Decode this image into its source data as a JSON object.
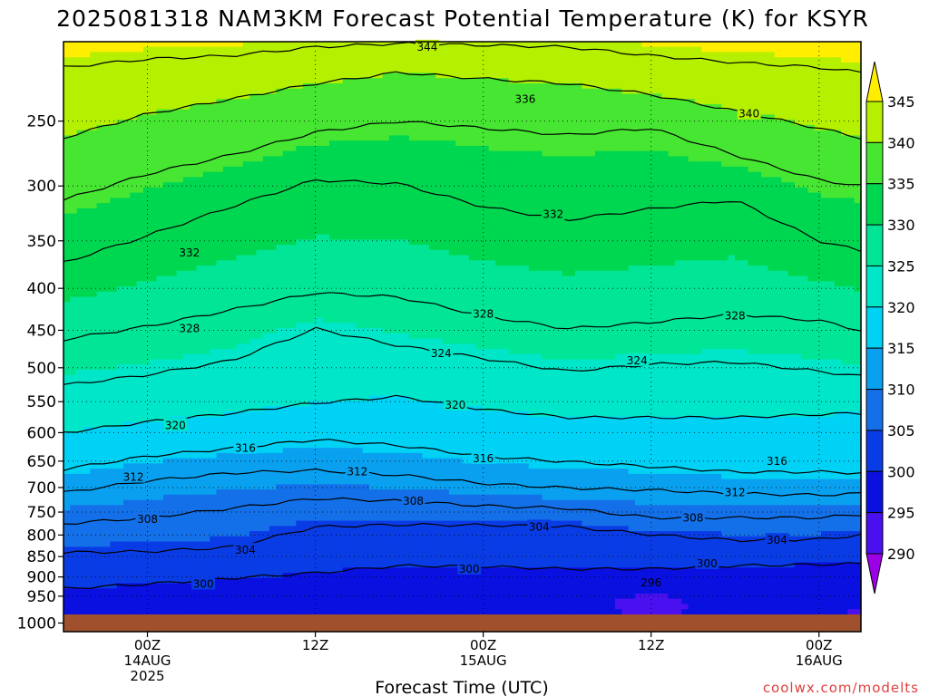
{
  "chart_data": {
    "type": "contour",
    "title": "2025081318 NAM3KM Forecast Potential Temperature (K) for KSYR",
    "xlabel": "Forecast Time (UTC)",
    "ylabel": "",
    "credit": "coolwx.com/modelts",
    "y_scale": "log",
    "y_inverted": true,
    "ylim": [
      1000,
      200
    ],
    "y_ticks": [
      250,
      300,
      350,
      400,
      450,
      500,
      550,
      600,
      650,
      700,
      750,
      800,
      850,
      900,
      950,
      1000
    ],
    "y_tick_labels": [
      "250",
      "300",
      "350",
      "400",
      "450",
      "500",
      "550",
      "600",
      "650",
      "700",
      "750",
      "800",
      "850",
      "900",
      "950",
      "1000"
    ],
    "xlim": [
      "2025-08-13T18Z",
      "2025-08-16T03Z"
    ],
    "x_ticks": [
      {
        "time": "2025-08-14T00Z",
        "line1": "00Z",
        "line2": "14AUG",
        "line3": "2025"
      },
      {
        "time": "2025-08-14T12Z",
        "line1": "12Z",
        "line2": "",
        "line3": ""
      },
      {
        "time": "2025-08-15T00Z",
        "line1": "00Z",
        "line2": "15AUG",
        "line3": ""
      },
      {
        "time": "2025-08-15T12Z",
        "line1": "12Z",
        "line2": "",
        "line3": ""
      },
      {
        "time": "2025-08-16T00Z",
        "line1": "00Z",
        "line2": "16AUG",
        "line3": ""
      }
    ],
    "grid": true,
    "colorbar": {
      "placement": "right",
      "ticks": [
        "290",
        "295",
        "300",
        "305",
        "310",
        "315",
        "320",
        "325",
        "330",
        "335",
        "340",
        "345"
      ],
      "bins": [
        {
          "from": 285,
          "to": 290,
          "color": "#9b00e6"
        },
        {
          "from": 290,
          "to": 295,
          "color": "#4a10f0"
        },
        {
          "from": 295,
          "to": 300,
          "color": "#0a10e0"
        },
        {
          "from": 300,
          "to": 305,
          "color": "#0a3ce6"
        },
        {
          "from": 305,
          "to": 310,
          "color": "#1470e8"
        },
        {
          "from": 310,
          "to": 315,
          "color": "#0aa0f0"
        },
        {
          "from": 315,
          "to": 320,
          "color": "#00d2f5"
        },
        {
          "from": 320,
          "to": 325,
          "color": "#00e6c8"
        },
        {
          "from": 325,
          "to": 330,
          "color": "#00e696"
        },
        {
          "from": 330,
          "to": 335,
          "color": "#00d750"
        },
        {
          "from": 335,
          "to": 340,
          "color": "#46e632"
        },
        {
          "from": 340,
          "to": 345,
          "color": "#b4f000"
        },
        {
          "from": 345,
          "to": 350,
          "color": "#ffee00"
        }
      ]
    },
    "ground_color": "#a0502d",
    "times": [
      "2025-08-13T18Z",
      "2025-08-14T00Z",
      "2025-08-14T06Z",
      "2025-08-14T12Z",
      "2025-08-14T18Z",
      "2025-08-15T00Z",
      "2025-08-15T06Z",
      "2025-08-15T12Z",
      "2025-08-15T18Z",
      "2025-08-16T00Z",
      "2025-08-16T03Z"
    ],
    "isentropes": [
      {
        "theta": 300,
        "pressure": [
          930,
          918,
          903,
          890,
          872,
          874,
          880,
          880,
          872,
          869,
          867
        ]
      },
      {
        "theta": 304,
        "pressure": [
          840,
          838,
          828,
          782,
          777,
          778,
          781,
          799,
          812,
          810,
          800
        ]
      },
      {
        "theta": 308,
        "pressure": [
          775,
          762,
          742,
          722,
          727,
          737,
          742,
          762,
          762,
          762,
          755
        ]
      },
      {
        "theta": 312,
        "pressure": [
          710,
          687,
          672,
          667,
          676,
          692,
          701,
          705,
          712,
          715,
          712
        ]
      },
      {
        "theta": 316,
        "pressure": [
          665,
          641,
          627,
          612,
          622,
          641,
          651,
          660,
          670,
          670,
          672
        ]
      },
      {
        "theta": 320,
        "pressure": [
          600,
          582,
          568,
          552,
          542,
          562,
          575,
          575,
          575,
          570,
          568
        ]
      },
      {
        "theta": 324,
        "pressure": [
          525,
          510,
          490,
          448,
          470,
          487,
          505,
          495,
          492,
          505,
          512
        ]
      },
      {
        "theta": 328,
        "pressure": [
          462,
          445,
          425,
          405,
          410,
          432,
          448,
          440,
          430,
          438,
          450
        ]
      },
      {
        "theta": 332,
        "pressure": [
          372,
          345,
          318,
          295,
          298,
          318,
          330,
          320,
          312,
          350,
          360
        ]
      },
      {
        "theta": 336,
        "pressure": [
          312,
          290,
          275,
          258,
          250,
          255,
          260,
          255,
          275,
          295,
          300
        ]
      },
      {
        "theta": 340,
        "pressure": [
          262,
          245,
          235,
          225,
          218,
          222,
          225,
          232,
          243,
          255,
          262
        ]
      },
      {
        "theta": 344,
        "pressure": [
          215,
          210,
          208,
          203,
          201,
          202,
          203,
          208,
          212,
          215,
          218
        ]
      }
    ],
    "contour_labels": [
      {
        "theta": 344,
        "time": "2025-08-14T20Z",
        "pressure": 203
      },
      {
        "theta": 336,
        "time": "2025-08-15T03Z",
        "pressure": 235
      },
      {
        "theta": 340,
        "time": "2025-08-15T19Z",
        "pressure": 245
      },
      {
        "theta": 332,
        "time": "2025-08-14T03Z",
        "pressure": 362
      },
      {
        "theta": 332,
        "time": "2025-08-15T05Z",
        "pressure": 325
      },
      {
        "theta": 328,
        "time": "2025-08-14T03Z",
        "pressure": 448
      },
      {
        "theta": 328,
        "time": "2025-08-15T00Z",
        "pressure": 430
      },
      {
        "theta": 328,
        "time": "2025-08-15T18Z",
        "pressure": 432
      },
      {
        "theta": 324,
        "time": "2025-08-14T21Z",
        "pressure": 480
      },
      {
        "theta": 324,
        "time": "2025-08-15T11Z",
        "pressure": 490
      },
      {
        "theta": 320,
        "time": "2025-08-14T02Z",
        "pressure": 588
      },
      {
        "theta": 320,
        "time": "2025-08-14T22Z",
        "pressure": 555
      },
      {
        "theta": 316,
        "time": "2025-08-14T07Z",
        "pressure": 627
      },
      {
        "theta": 316,
        "time": "2025-08-15T00Z",
        "pressure": 645
      },
      {
        "theta": 316,
        "time": "2025-08-15T21Z",
        "pressure": 650
      },
      {
        "theta": 312,
        "time": "2025-08-13T23Z",
        "pressure": 680
      },
      {
        "theta": 312,
        "time": "2025-08-14T15Z",
        "pressure": 670
      },
      {
        "theta": 312,
        "time": "2025-08-15T18Z",
        "pressure": 710
      },
      {
        "theta": 308,
        "time": "2025-08-14T00Z",
        "pressure": 765
      },
      {
        "theta": 308,
        "time": "2025-08-14T19Z",
        "pressure": 727
      },
      {
        "theta": 308,
        "time": "2025-08-15T15Z",
        "pressure": 762
      },
      {
        "theta": 304,
        "time": "2025-08-14T07Z",
        "pressure": 835
      },
      {
        "theta": 304,
        "time": "2025-08-15T04Z",
        "pressure": 782
      },
      {
        "theta": 304,
        "time": "2025-08-15T21Z",
        "pressure": 812
      },
      {
        "theta": 300,
        "time": "2025-08-14T04Z",
        "pressure": 918
      },
      {
        "theta": 300,
        "time": "2025-08-14T23Z",
        "pressure": 880
      },
      {
        "theta": 300,
        "time": "2025-08-15T16Z",
        "pressure": 867
      },
      {
        "theta": 296,
        "time": "2025-08-15T12Z",
        "pressure": 915
      }
    ],
    "cool_pools": [
      {
        "theta": 296,
        "time": "2025-08-15T12Z",
        "pressure": 975
      }
    ]
  }
}
